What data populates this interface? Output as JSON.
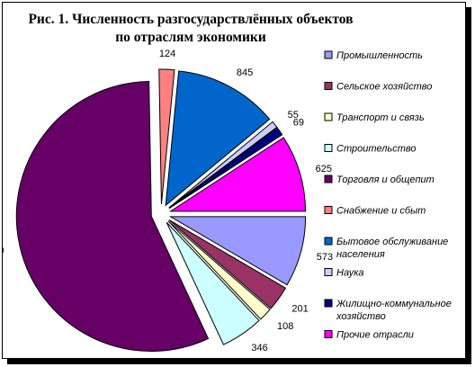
{
  "chart_data": {
    "type": "pie",
    "title_lines": [
      "Рис. 1. Численность разгосударствлённых объектов",
      "по отраслям экономики"
    ],
    "slices": [
      {
        "name": "Промышленность",
        "value": 573,
        "color": "#9999ff"
      },
      {
        "name": "Сельское хозяйство",
        "value": 201,
        "color": "#993366"
      },
      {
        "name": "Транспорт и связь",
        "value": 108,
        "color": "#ffffcc"
      },
      {
        "name": "Строительство",
        "value": 346,
        "color": "#ccffff"
      },
      {
        "name": "Торговля и общепит",
        "value": 3849,
        "color": "#660066"
      },
      {
        "name": "Снабжение и сбыт",
        "value": 124,
        "color": "#ff8080"
      },
      {
        "name": "Бытовое обслуживание населения",
        "value": 845,
        "color": "#0066cc"
      },
      {
        "name": "Наука",
        "value": 55,
        "color": "#ccccff"
      },
      {
        "name": "Жилищно-коммунальное хозяйство",
        "value": 69,
        "color": "#000080"
      },
      {
        "name": "Прочие отрасли",
        "value": 625,
        "color": "#ff00ff"
      }
    ],
    "legend": {
      "position": "right",
      "items": [
        {
          "lines": [
            "Промышленность"
          ],
          "color": "#9999ff"
        },
        {
          "lines": [
            "Сельское хозяйство"
          ],
          "color": "#993366"
        },
        {
          "lines": [
            "Транспорт и связь"
          ],
          "color": "#ffffcc"
        },
        {
          "lines": [
            "Строительство"
          ],
          "color": "#ccffff"
        },
        {
          "lines": [
            "Торговля и общепит"
          ],
          "color": "#660066"
        },
        {
          "lines": [
            "Снабжение и сбыт"
          ],
          "color": "#ff8080"
        },
        {
          "lines": [
            "Бытовое обслуживание",
            "населения"
          ],
          "color": "#0066cc"
        },
        {
          "lines": [
            "Наука"
          ],
          "color": "#ccccff"
        },
        {
          "lines": [
            "Жилищно-коммунальное",
            "хозяйство"
          ],
          "color": "#000080"
        },
        {
          "lines": [
            "Прочие отрасли"
          ],
          "color": "#ff00ff"
        }
      ]
    }
  }
}
